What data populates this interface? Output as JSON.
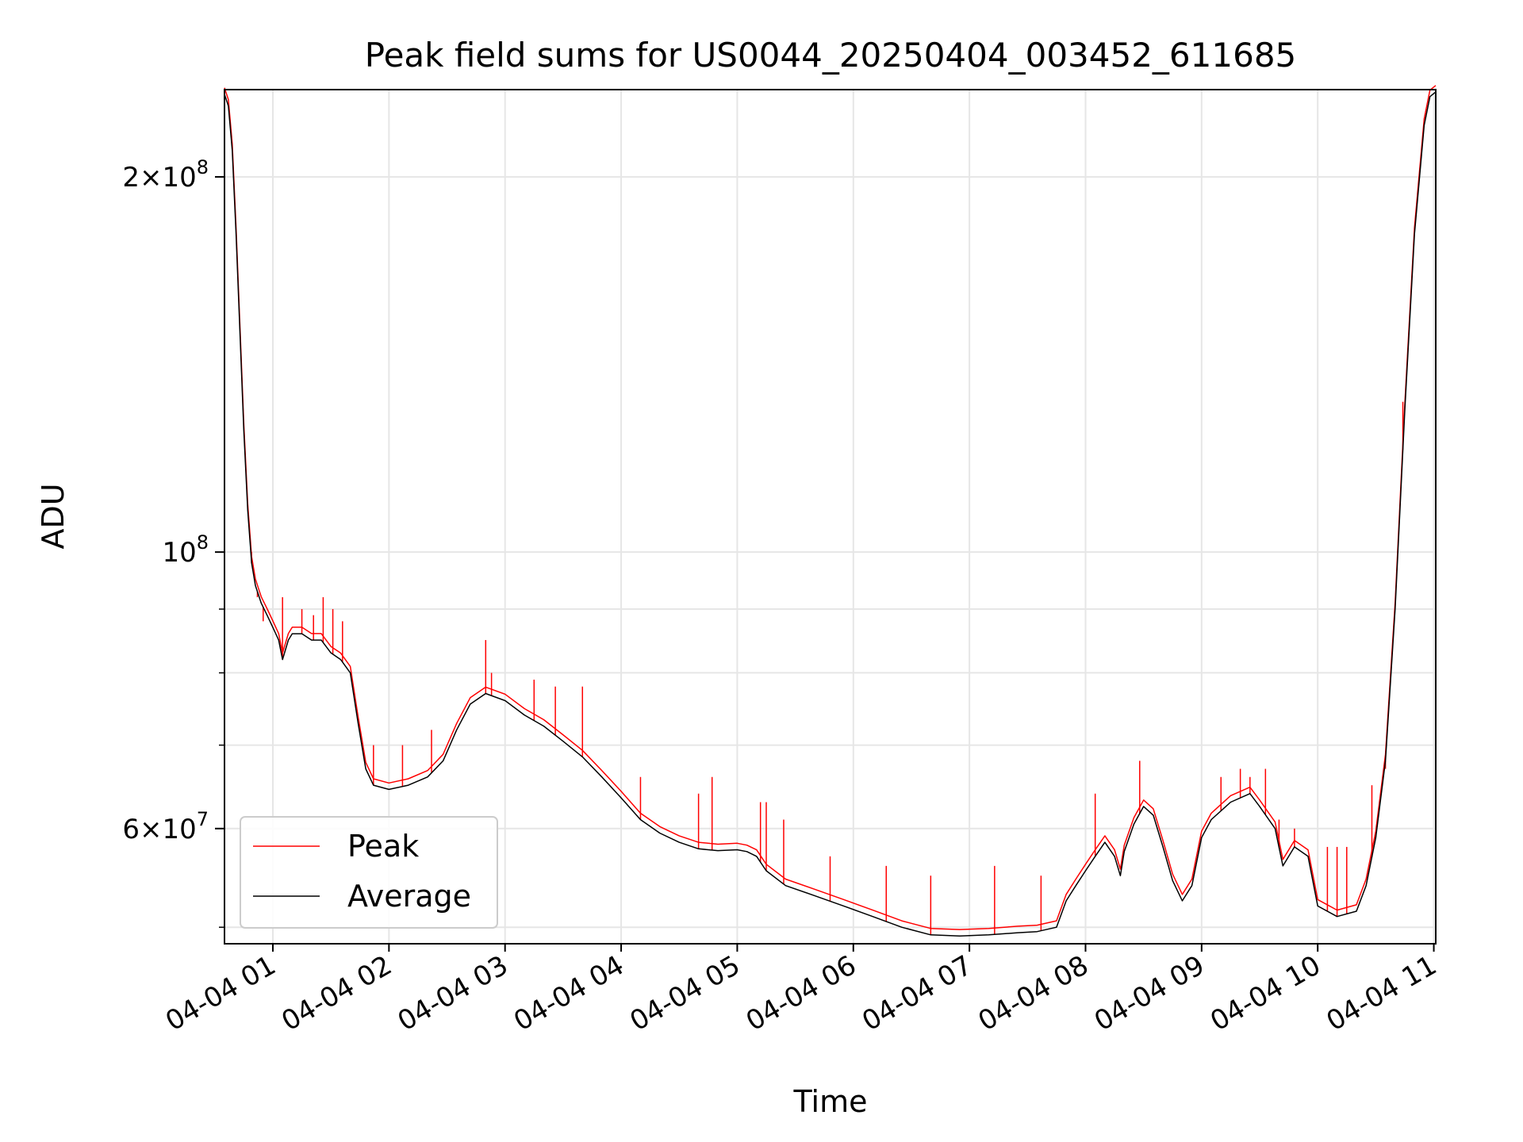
{
  "chart_data": {
    "type": "line",
    "title": "Peak field sums for US0044_20250404_003452_611685",
    "xlabel": "Time",
    "ylabel": "ADU",
    "yscale": "log",
    "grid": true,
    "legend_position": "bottom-left",
    "xlim": [
      "2025-04-04 00:35",
      "2025-04-04 11:01"
    ],
    "ylim": [
      48500000,
      235000000
    ],
    "x_ticks": [
      {
        "t": "2025-04-04 01:00",
        "label": "04-04 01"
      },
      {
        "t": "2025-04-04 02:00",
        "label": "04-04 02"
      },
      {
        "t": "2025-04-04 03:00",
        "label": "04-04 03"
      },
      {
        "t": "2025-04-04 04:00",
        "label": "04-04 04"
      },
      {
        "t": "2025-04-04 05:00",
        "label": "04-04 05"
      },
      {
        "t": "2025-04-04 06:00",
        "label": "04-04 06"
      },
      {
        "t": "2025-04-04 07:00",
        "label": "04-04 07"
      },
      {
        "t": "2025-04-04 08:00",
        "label": "04-04 08"
      },
      {
        "t": "2025-04-04 09:00",
        "label": "04-04 09"
      },
      {
        "t": "2025-04-04 10:00",
        "label": "04-04 10"
      },
      {
        "t": "2025-04-04 11:00",
        "label": "04-04 11"
      }
    ],
    "y_ticks_major": [
      {
        "value": 60000000,
        "mantissa": "6",
        "exponent": "7"
      },
      {
        "value": 100000000,
        "mantissa": "",
        "exponent": "8"
      },
      {
        "value": 200000000,
        "mantissa": "2",
        "exponent": "8"
      }
    ],
    "y_ticks_minor": [
      50000000,
      70000000,
      80000000,
      90000000,
      300000000
    ],
    "series": [
      {
        "name": "Peak",
        "color": "#ff0000",
        "spikes": [
          [
            "2025-04-04 00:49",
            100000000
          ],
          [
            "2025-04-04 00:52",
            92000000
          ],
          [
            "2025-04-04 00:55",
            88000000
          ],
          [
            "2025-04-04 01:05",
            92000000
          ],
          [
            "2025-04-04 01:15",
            90000000
          ],
          [
            "2025-04-04 01:21",
            89000000
          ],
          [
            "2025-04-04 01:26",
            92000000
          ],
          [
            "2025-04-04 01:31",
            90000000
          ],
          [
            "2025-04-04 01:36",
            88000000
          ],
          [
            "2025-04-04 01:52",
            70000000
          ],
          [
            "2025-04-04 02:07",
            70000000
          ],
          [
            "2025-04-04 02:22",
            72000000
          ],
          [
            "2025-04-04 02:50",
            85000000
          ],
          [
            "2025-04-04 02:53",
            80000000
          ],
          [
            "2025-04-04 03:15",
            79000000
          ],
          [
            "2025-04-04 03:26",
            78000000
          ],
          [
            "2025-04-04 03:40",
            78000000
          ],
          [
            "2025-04-04 04:10",
            66000000
          ],
          [
            "2025-04-04 04:40",
            64000000
          ],
          [
            "2025-04-04 04:47",
            66000000
          ],
          [
            "2025-04-04 05:12",
            63000000
          ],
          [
            "2025-04-04 05:15",
            63000000
          ],
          [
            "2025-04-04 05:24",
            61000000
          ],
          [
            "2025-04-04 05:48",
            57000000
          ],
          [
            "2025-04-04 06:17",
            56000000
          ],
          [
            "2025-04-04 06:40",
            55000000
          ],
          [
            "2025-04-04 07:13",
            56000000
          ],
          [
            "2025-04-04 07:37",
            55000000
          ],
          [
            "2025-04-04 08:05",
            64000000
          ],
          [
            "2025-04-04 08:28",
            68000000
          ],
          [
            "2025-04-04 09:10",
            66000000
          ],
          [
            "2025-04-04 09:20",
            67000000
          ],
          [
            "2025-04-04 09:25",
            66000000
          ],
          [
            "2025-04-04 09:33",
            67000000
          ],
          [
            "2025-04-04 09:40",
            61000000
          ],
          [
            "2025-04-04 09:48",
            60000000
          ],
          [
            "2025-04-04 10:05",
            58000000
          ],
          [
            "2025-04-04 10:10",
            58000000
          ],
          [
            "2025-04-04 10:15",
            58000000
          ],
          [
            "2025-04-04 10:28",
            65000000
          ],
          [
            "2025-04-04 10:35",
            67000000
          ],
          [
            "2025-04-04 10:44",
            132000000
          ]
        ]
      },
      {
        "name": "Average",
        "color": "#000000",
        "points": [
          [
            "2025-04-04 00:35",
            233000000
          ],
          [
            "2025-04-04 00:37",
            228000000
          ],
          [
            "2025-04-04 00:39",
            210000000
          ],
          [
            "2025-04-04 00:41",
            180000000
          ],
          [
            "2025-04-04 00:43",
            150000000
          ],
          [
            "2025-04-04 00:45",
            125000000
          ],
          [
            "2025-04-04 00:47",
            108000000
          ],
          [
            "2025-04-04 00:49",
            98000000
          ],
          [
            "2025-04-04 00:51",
            94000000
          ],
          [
            "2025-04-04 00:54",
            91000000
          ],
          [
            "2025-04-04 00:57",
            89000000
          ],
          [
            "2025-04-04 01:00",
            87000000
          ],
          [
            "2025-04-04 01:03",
            85000000
          ],
          [
            "2025-04-04 01:05",
            82000000
          ],
          [
            "2025-04-04 01:08",
            85000000
          ],
          [
            "2025-04-04 01:10",
            86000000
          ],
          [
            "2025-04-04 01:15",
            86000000
          ],
          [
            "2025-04-04 01:20",
            85000000
          ],
          [
            "2025-04-04 01:25",
            85000000
          ],
          [
            "2025-04-04 01:30",
            83000000
          ],
          [
            "2025-04-04 01:35",
            82000000
          ],
          [
            "2025-04-04 01:40",
            80000000
          ],
          [
            "2025-04-04 01:44",
            73000000
          ],
          [
            "2025-04-04 01:48",
            67000000
          ],
          [
            "2025-04-04 01:52",
            65000000
          ],
          [
            "2025-04-04 02:00",
            64500000
          ],
          [
            "2025-04-04 02:10",
            65000000
          ],
          [
            "2025-04-04 02:20",
            66000000
          ],
          [
            "2025-04-04 02:28",
            68000000
          ],
          [
            "2025-04-04 02:35",
            72000000
          ],
          [
            "2025-04-04 02:42",
            75500000
          ],
          [
            "2025-04-04 02:50",
            77000000
          ],
          [
            "2025-04-04 03:00",
            76000000
          ],
          [
            "2025-04-04 03:10",
            74000000
          ],
          [
            "2025-04-04 03:20",
            72500000
          ],
          [
            "2025-04-04 03:30",
            70500000
          ],
          [
            "2025-04-04 03:40",
            68500000
          ],
          [
            "2025-04-04 03:50",
            66000000
          ],
          [
            "2025-04-04 04:00",
            63500000
          ],
          [
            "2025-04-04 04:10",
            61000000
          ],
          [
            "2025-04-04 04:20",
            59500000
          ],
          [
            "2025-04-04 04:30",
            58500000
          ],
          [
            "2025-04-04 04:40",
            57800000
          ],
          [
            "2025-04-04 04:50",
            57600000
          ],
          [
            "2025-04-04 05:00",
            57700000
          ],
          [
            "2025-04-04 05:05",
            57500000
          ],
          [
            "2025-04-04 05:10",
            57000000
          ],
          [
            "2025-04-04 05:15",
            55500000
          ],
          [
            "2025-04-04 05:25",
            54000000
          ],
          [
            "2025-04-04 05:40",
            53000000
          ],
          [
            "2025-04-04 05:55",
            52000000
          ],
          [
            "2025-04-04 06:10",
            51000000
          ],
          [
            "2025-04-04 06:25",
            50000000
          ],
          [
            "2025-04-04 06:40",
            49300000
          ],
          [
            "2025-04-04 06:55",
            49200000
          ],
          [
            "2025-04-04 07:10",
            49300000
          ],
          [
            "2025-04-04 07:25",
            49500000
          ],
          [
            "2025-04-04 07:35",
            49600000
          ],
          [
            "2025-04-04 07:45",
            50000000
          ],
          [
            "2025-04-04 07:50",
            52500000
          ],
          [
            "2025-04-04 07:55",
            54000000
          ],
          [
            "2025-04-04 08:00",
            55500000
          ],
          [
            "2025-04-04 08:05",
            57000000
          ],
          [
            "2025-04-04 08:10",
            58500000
          ],
          [
            "2025-04-04 08:15",
            57000000
          ],
          [
            "2025-04-04 08:18",
            55000000
          ],
          [
            "2025-04-04 08:20",
            57500000
          ],
          [
            "2025-04-04 08:25",
            60500000
          ],
          [
            "2025-04-04 08:30",
            62500000
          ],
          [
            "2025-04-04 08:35",
            61500000
          ],
          [
            "2025-04-04 08:40",
            58000000
          ],
          [
            "2025-04-04 08:45",
            54500000
          ],
          [
            "2025-04-04 08:50",
            52500000
          ],
          [
            "2025-04-04 08:55",
            54000000
          ],
          [
            "2025-04-04 09:00",
            59000000
          ],
          [
            "2025-04-04 09:05",
            61000000
          ],
          [
            "2025-04-04 09:15",
            63000000
          ],
          [
            "2025-04-04 09:25",
            64000000
          ],
          [
            "2025-04-04 09:30",
            62500000
          ],
          [
            "2025-04-04 09:38",
            60000000
          ],
          [
            "2025-04-04 09:42",
            56000000
          ],
          [
            "2025-04-04 09:48",
            58000000
          ],
          [
            "2025-04-04 09:55",
            57000000
          ],
          [
            "2025-04-04 10:00",
            52000000
          ],
          [
            "2025-04-04 10:10",
            51000000
          ],
          [
            "2025-04-04 10:20",
            51500000
          ],
          [
            "2025-04-04 10:25",
            54000000
          ],
          [
            "2025-04-04 10:30",
            59000000
          ],
          [
            "2025-04-04 10:35",
            68000000
          ],
          [
            "2025-04-04 10:40",
            90000000
          ],
          [
            "2025-04-04 10:45",
            130000000
          ],
          [
            "2025-04-04 10:50",
            180000000
          ],
          [
            "2025-04-04 10:55",
            220000000
          ],
          [
            "2025-04-04 10:58",
            232000000
          ],
          [
            "2025-04-04 11:01",
            234000000
          ]
        ]
      }
    ]
  }
}
